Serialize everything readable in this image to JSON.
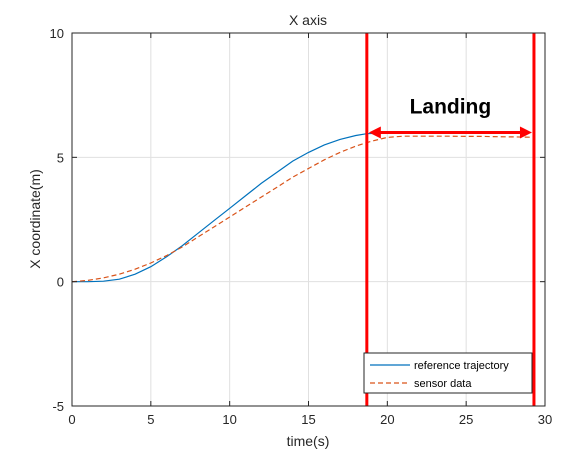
{
  "chart_data": {
    "type": "line",
    "title": "X axis",
    "xlabel": "time(s)",
    "ylabel": "X coordinate(m)",
    "xlim": [
      0,
      30
    ],
    "ylim": [
      -5,
      10
    ],
    "xticks": [
      0,
      5,
      10,
      15,
      20,
      25,
      30
    ],
    "yticks": [
      -5,
      0,
      5,
      10
    ],
    "xtick_labels": [
      "0",
      "5",
      "10",
      "15",
      "20",
      "25",
      "30"
    ],
    "ytick_labels": [
      "-5",
      "0",
      "5",
      "10"
    ],
    "grid": true,
    "legend_position": "bottom-right",
    "series": [
      {
        "name": "reference trajectory",
        "style": "solid",
        "color": "#0072BD",
        "x": [
          0,
          1,
          2,
          3,
          4,
          5,
          6,
          7,
          8,
          9,
          10,
          11,
          12,
          13,
          14,
          15,
          16,
          17,
          18,
          18.7,
          19.5,
          20
        ],
        "y": [
          0.0,
          0.0,
          0.02,
          0.1,
          0.3,
          0.6,
          1.0,
          1.45,
          1.95,
          2.45,
          2.95,
          3.45,
          3.95,
          4.4,
          4.85,
          5.2,
          5.5,
          5.72,
          5.88,
          5.95,
          5.97,
          5.98
        ]
      },
      {
        "name": "sensor data",
        "style": "dashed",
        "color": "#D95319",
        "x": [
          0,
          1,
          2,
          3,
          4,
          5,
          6,
          7,
          8,
          9,
          10,
          11,
          12,
          13,
          14,
          15,
          16,
          17,
          18,
          19,
          20,
          21,
          22,
          23,
          24,
          25,
          26,
          27,
          28,
          29,
          29.3
        ],
        "y": [
          0.0,
          0.05,
          0.15,
          0.3,
          0.5,
          0.75,
          1.05,
          1.4,
          1.8,
          2.2,
          2.6,
          3.0,
          3.4,
          3.8,
          4.2,
          4.55,
          4.9,
          5.2,
          5.45,
          5.65,
          5.8,
          5.85,
          5.85,
          5.85,
          5.85,
          5.84,
          5.84,
          5.83,
          5.82,
          5.81,
          5.8
        ]
      }
    ],
    "annotations": [
      {
        "text": "Landing",
        "color": "#FF0000",
        "vlines_x": [
          18.7,
          29.3
        ],
        "arrow_y": 6.0,
        "arrow_x_range": [
          18.7,
          29.3
        ]
      }
    ]
  }
}
